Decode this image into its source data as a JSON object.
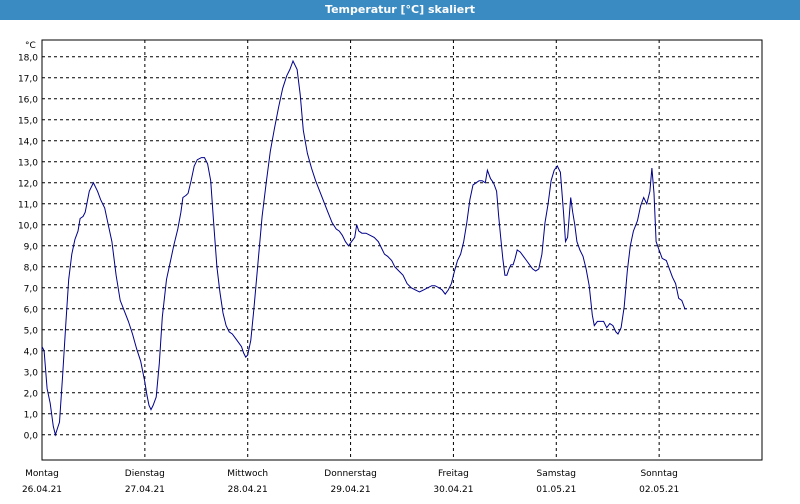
{
  "title": "Temperatur [°C] skaliert",
  "chart_data": {
    "type": "line",
    "title": "Temperatur [°C] skaliert",
    "ylabel": "°C",
    "xlabel": "",
    "ylim": [
      -1.2,
      18.8
    ],
    "xlim": [
      0,
      7
    ],
    "grid": true,
    "line_color": "#00008b",
    "y_ticks": [
      "0,0",
      "1,0",
      "2,0",
      "3,0",
      "4,0",
      "5,0",
      "6,0",
      "7,0",
      "8,0",
      "9,0",
      "10,0",
      "11,0",
      "12,0",
      "13,0",
      "14,0",
      "15,0",
      "16,0",
      "17,0",
      "18,0"
    ],
    "x_ticks": [
      {
        "day": "Montag",
        "date": "26.04.21"
      },
      {
        "day": "Dienstag",
        "date": "27.04.21"
      },
      {
        "day": "Mittwoch",
        "date": "28.04.21"
      },
      {
        "day": "Donnerstag",
        "date": "29.04.21"
      },
      {
        "day": "Freitag",
        "date": "30.04.21"
      },
      {
        "day": "Samstag",
        "date": "01.05.21"
      },
      {
        "day": "Sonntag",
        "date": "02.05.21"
      }
    ],
    "series": [
      {
        "points": [
          [
            0.0,
            4.2
          ],
          [
            0.02,
            4.0
          ],
          [
            0.05,
            2.2
          ],
          [
            0.08,
            1.5
          ],
          [
            0.11,
            0.4
          ],
          [
            0.13,
            0.0
          ],
          [
            0.15,
            0.3
          ],
          [
            0.17,
            0.6
          ],
          [
            0.2,
            2.8
          ],
          [
            0.23,
            5.2
          ],
          [
            0.26,
            7.4
          ],
          [
            0.29,
            8.6
          ],
          [
            0.32,
            9.3
          ],
          [
            0.35,
            9.7
          ],
          [
            0.37,
            10.3
          ],
          [
            0.4,
            10.4
          ],
          [
            0.42,
            10.6
          ],
          [
            0.46,
            11.6
          ],
          [
            0.5,
            12.0
          ],
          [
            0.54,
            11.6
          ],
          [
            0.57,
            11.2
          ],
          [
            0.61,
            10.8
          ],
          [
            0.64,
            10.1
          ],
          [
            0.68,
            9.2
          ],
          [
            0.72,
            7.6
          ],
          [
            0.76,
            6.4
          ],
          [
            0.8,
            5.9
          ],
          [
            0.84,
            5.4
          ],
          [
            0.88,
            4.8
          ],
          [
            0.92,
            4.1
          ],
          [
            0.96,
            3.5
          ],
          [
            0.98,
            3.0
          ],
          [
            1.0,
            2.5
          ],
          [
            1.02,
            1.9
          ],
          [
            1.04,
            1.4
          ],
          [
            1.06,
            1.2
          ],
          [
            1.08,
            1.4
          ],
          [
            1.11,
            1.8
          ],
          [
            1.14,
            3.4
          ],
          [
            1.17,
            5.6
          ],
          [
            1.21,
            7.4
          ],
          [
            1.25,
            8.3
          ],
          [
            1.28,
            9.0
          ],
          [
            1.32,
            9.8
          ],
          [
            1.35,
            10.6
          ],
          [
            1.37,
            11.3
          ],
          [
            1.4,
            11.4
          ],
          [
            1.42,
            11.5
          ],
          [
            1.45,
            12.1
          ],
          [
            1.48,
            12.8
          ],
          [
            1.51,
            13.1
          ],
          [
            1.55,
            13.2
          ],
          [
            1.58,
            13.2
          ],
          [
            1.61,
            12.9
          ],
          [
            1.64,
            12.1
          ],
          [
            1.67,
            10.0
          ],
          [
            1.7,
            8.0
          ],
          [
            1.73,
            6.8
          ],
          [
            1.76,
            5.8
          ],
          [
            1.79,
            5.2
          ],
          [
            1.82,
            4.9
          ],
          [
            1.85,
            4.8
          ],
          [
            1.88,
            4.6
          ],
          [
            1.91,
            4.4
          ],
          [
            1.94,
            4.2
          ],
          [
            1.96,
            3.9
          ],
          [
            1.98,
            3.7
          ],
          [
            2.0,
            3.8
          ],
          [
            2.03,
            4.5
          ],
          [
            2.06,
            6.0
          ],
          [
            2.1,
            8.2
          ],
          [
            2.14,
            10.4
          ],
          [
            2.18,
            12.0
          ],
          [
            2.22,
            13.5
          ],
          [
            2.26,
            14.6
          ],
          [
            2.3,
            15.6
          ],
          [
            2.34,
            16.5
          ],
          [
            2.38,
            17.1
          ],
          [
            2.41,
            17.4
          ],
          [
            2.44,
            17.8
          ],
          [
            2.48,
            17.4
          ],
          [
            2.51,
            16.2
          ],
          [
            2.54,
            14.5
          ],
          [
            2.58,
            13.4
          ],
          [
            2.62,
            12.7
          ],
          [
            2.66,
            12.1
          ],
          [
            2.7,
            11.6
          ],
          [
            2.74,
            11.1
          ],
          [
            2.78,
            10.6
          ],
          [
            2.82,
            10.1
          ],
          [
            2.86,
            9.8
          ],
          [
            2.89,
            9.7
          ],
          [
            2.92,
            9.5
          ],
          [
            2.95,
            9.2
          ],
          [
            2.98,
            9.0
          ],
          [
            3.01,
            9.2
          ],
          [
            3.04,
            9.4
          ],
          [
            3.06,
            10.0
          ],
          [
            3.08,
            9.7
          ],
          [
            3.11,
            9.6
          ],
          [
            3.15,
            9.6
          ],
          [
            3.19,
            9.5
          ],
          [
            3.23,
            9.4
          ],
          [
            3.27,
            9.2
          ],
          [
            3.3,
            8.9
          ],
          [
            3.33,
            8.6
          ],
          [
            3.36,
            8.5
          ],
          [
            3.4,
            8.3
          ],
          [
            3.43,
            8.0
          ],
          [
            3.47,
            7.8
          ],
          [
            3.51,
            7.6
          ],
          [
            3.55,
            7.2
          ],
          [
            3.59,
            7.0
          ],
          [
            3.63,
            6.9
          ],
          [
            3.67,
            6.8
          ],
          [
            3.71,
            6.9
          ],
          [
            3.75,
            7.0
          ],
          [
            3.79,
            7.1
          ],
          [
            3.82,
            7.1
          ],
          [
            3.86,
            7.0
          ],
          [
            3.89,
            6.9
          ],
          [
            3.92,
            6.7
          ],
          [
            3.95,
            6.9
          ],
          [
            3.98,
            7.2
          ],
          [
            4.01,
            7.8
          ],
          [
            4.04,
            8.3
          ],
          [
            4.07,
            8.6
          ],
          [
            4.1,
            9.2
          ],
          [
            4.13,
            10.1
          ],
          [
            4.16,
            11.2
          ],
          [
            4.19,
            11.9
          ],
          [
            4.22,
            12.0
          ],
          [
            4.25,
            12.1
          ],
          [
            4.28,
            12.1
          ],
          [
            4.31,
            12.0
          ],
          [
            4.33,
            12.6
          ],
          [
            4.36,
            12.2
          ],
          [
            4.39,
            12.0
          ],
          [
            4.42,
            11.6
          ],
          [
            4.44,
            10.4
          ],
          [
            4.46,
            9.4
          ],
          [
            4.48,
            8.4
          ],
          [
            4.5,
            7.6
          ],
          [
            4.52,
            7.6
          ],
          [
            4.54,
            7.9
          ],
          [
            4.56,
            8.1
          ],
          [
            4.58,
            8.1
          ],
          [
            4.6,
            8.4
          ],
          [
            4.62,
            8.8
          ],
          [
            4.65,
            8.7
          ],
          [
            4.68,
            8.5
          ],
          [
            4.71,
            8.3
          ],
          [
            4.74,
            8.1
          ],
          [
            4.77,
            7.9
          ],
          [
            4.8,
            7.8
          ],
          [
            4.83,
            7.9
          ],
          [
            4.86,
            8.6
          ],
          [
            4.89,
            10.1
          ],
          [
            4.92,
            11.0
          ],
          [
            4.95,
            12.1
          ],
          [
            4.98,
            12.6
          ],
          [
            5.01,
            12.8
          ],
          [
            5.04,
            12.5
          ],
          [
            5.07,
            10.6
          ],
          [
            5.09,
            9.2
          ],
          [
            5.11,
            9.4
          ],
          [
            5.14,
            11.3
          ],
          [
            5.16,
            10.6
          ],
          [
            5.18,
            10.0
          ],
          [
            5.2,
            9.2
          ],
          [
            5.23,
            8.8
          ],
          [
            5.26,
            8.5
          ],
          [
            5.29,
            7.9
          ],
          [
            5.32,
            7.1
          ],
          [
            5.35,
            5.7
          ],
          [
            5.37,
            5.2
          ],
          [
            5.4,
            5.4
          ],
          [
            5.43,
            5.4
          ],
          [
            5.46,
            5.4
          ],
          [
            5.49,
            5.1
          ],
          [
            5.52,
            5.3
          ],
          [
            5.55,
            5.2
          ],
          [
            5.58,
            4.9
          ],
          [
            5.6,
            4.8
          ],
          [
            5.63,
            5.1
          ],
          [
            5.66,
            6.1
          ],
          [
            5.69,
            7.8
          ],
          [
            5.72,
            9.0
          ],
          [
            5.75,
            9.7
          ],
          [
            5.79,
            10.2
          ],
          [
            5.82,
            10.9
          ],
          [
            5.85,
            11.3
          ],
          [
            5.88,
            11.0
          ],
          [
            5.91,
            11.6
          ],
          [
            5.93,
            12.7
          ],
          [
            5.95,
            11.5
          ],
          [
            5.97,
            9.2
          ],
          [
            6.0,
            8.8
          ],
          [
            6.03,
            8.4
          ],
          [
            6.07,
            8.3
          ],
          [
            6.1,
            7.9
          ],
          [
            6.13,
            7.5
          ],
          [
            6.16,
            7.2
          ],
          [
            6.19,
            6.5
          ],
          [
            6.22,
            6.4
          ],
          [
            6.25,
            6.0
          ],
          [
            6.27,
            6.0
          ]
        ]
      }
    ]
  }
}
